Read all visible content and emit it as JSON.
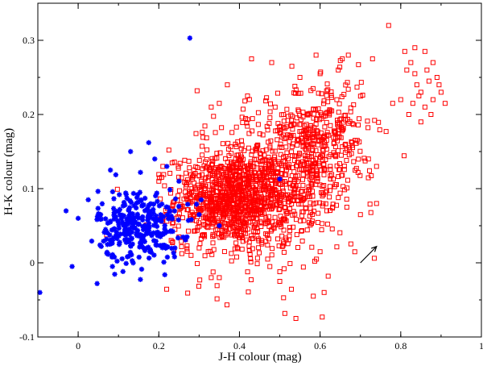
{
  "chart_data": {
    "type": "scatter",
    "xlabel": "J-H colour (mag)",
    "ylabel": "H-K colour (mag)",
    "xlim": [
      -0.1,
      1.0
    ],
    "ylim": [
      -0.1,
      0.35
    ],
    "x_ticks": [
      0,
      0.2,
      0.4,
      0.6,
      0.8,
      1
    ],
    "x_tick_labels": [
      "0",
      "0.2",
      "0.4",
      "0.6",
      "0.8",
      "1"
    ],
    "y_ticks": [
      -0.1,
      0,
      0.1,
      0.2,
      0.3
    ],
    "y_tick_labels": [
      "-0.1",
      "0",
      "0.1",
      "0.2",
      "0.3"
    ],
    "grid": false,
    "legend": "none",
    "annotation": {
      "type": "reddening-vector-arrow",
      "from": [
        0.7,
        0.0
      ],
      "to": [
        0.74,
        0.022
      ],
      "color": "#000000"
    },
    "series": [
      {
        "marker": "asterisk",
        "color": "#0000ff",
        "cloud": {
          "count": 300,
          "center": [
            0.15,
            0.05
          ],
          "spread": [
            0.05,
            0.025
          ]
        },
        "points": [
          [
            0.277,
            0.303
          ],
          [
            0.175,
            0.162
          ],
          [
            -0.095,
            -0.04
          ],
          [
            0.047,
            -0.028
          ],
          [
            -0.015,
            -0.005
          ],
          [
            0.085,
            -0.005
          ],
          [
            0.025,
            0.085
          ],
          [
            0.08,
            0.125
          ],
          [
            0.22,
            0.13
          ],
          [
            0.25,
            0.11
          ],
          [
            0.305,
            0.085
          ],
          [
            0.3,
            0.065
          ],
          [
            0.35,
            0.05
          ],
          [
            0.5,
            0.113
          ],
          [
            0.27,
            0.035
          ],
          [
            0.24,
            0.02
          ],
          [
            -0.03,
            0.07
          ],
          [
            0.0,
            0.06
          ],
          [
            0.13,
            0.15
          ],
          [
            0.19,
            0.14
          ]
        ]
      },
      {
        "marker": "open-square",
        "color": "#ff0000",
        "clouds": [
          {
            "count": 900,
            "center": [
              0.38,
              0.085
            ],
            "spread": [
              0.07,
              0.03
            ]
          },
          {
            "count": 550,
            "center": [
              0.52,
              0.125
            ],
            "spread": [
              0.09,
              0.045
            ]
          },
          {
            "count": 200,
            "center": [
              0.62,
              0.18
            ],
            "spread": [
              0.05,
              0.035
            ]
          },
          {
            "count": 110,
            "center": [
              0.43,
              0.05
            ],
            "spread": [
              0.12,
              0.05
            ]
          }
        ],
        "points": [
          [
            0.77,
            0.32
          ],
          [
            0.825,
            0.27
          ],
          [
            0.835,
            0.29
          ],
          [
            0.86,
            0.285
          ],
          [
            0.815,
            0.26
          ],
          [
            0.88,
            0.27
          ],
          [
            0.89,
            0.25
          ],
          [
            0.84,
            0.24
          ],
          [
            0.85,
            0.23
          ],
          [
            0.87,
            0.245
          ],
          [
            0.8,
            0.22
          ],
          [
            0.83,
            0.215
          ],
          [
            0.86,
            0.21
          ],
          [
            0.88,
            0.22
          ],
          [
            0.91,
            0.215
          ],
          [
            0.85,
            0.19
          ],
          [
            0.82,
            0.2
          ],
          [
            0.9,
            0.23
          ],
          [
            0.875,
            0.2
          ],
          [
            0.835,
            0.255
          ],
          [
            0.81,
            0.285
          ],
          [
            0.865,
            0.26
          ],
          [
            0.845,
            0.225
          ],
          [
            0.895,
            0.24
          ],
          [
            0.78,
            0.215
          ],
          [
            0.655,
            0.275
          ],
          [
            0.67,
            0.28
          ],
          [
            0.73,
            0.275
          ],
          [
            0.59,
            0.28
          ],
          [
            0.645,
            0.26
          ],
          [
            0.53,
            0.265
          ],
          [
            0.48,
            0.27
          ],
          [
            0.43,
            0.275
          ],
          [
            0.37,
            0.24
          ],
          [
            0.42,
            0.225
          ],
          [
            0.55,
            0.25
          ],
          [
            0.6,
            0.255
          ],
          [
            0.35,
            0.215
          ],
          [
            0.295,
            0.232
          ],
          [
            0.33,
            0.21
          ],
          [
            0.225,
            0.152
          ],
          [
            0.21,
            0.13
          ],
          [
            0.2,
            0.11
          ],
          [
            0.22,
            0.065
          ],
          [
            0.24,
            0.045
          ],
          [
            0.25,
            0.035
          ],
          [
            0.33,
            -0.02
          ],
          [
            0.35,
            -0.02
          ],
          [
            0.5,
            -0.025
          ],
          [
            0.54,
            -0.075
          ],
          [
            0.61,
            -0.04
          ],
          [
            0.6,
            0.015
          ],
          [
            0.72,
            0.14
          ],
          [
            0.74,
            0.13
          ],
          [
            0.7,
            0.065
          ],
          [
            0.74,
            0.08
          ],
          [
            0.3,
            0.02
          ],
          [
            0.28,
            0.01
          ],
          [
            0.47,
            0.005
          ],
          [
            0.5,
            -0.012
          ]
        ]
      }
    ]
  }
}
